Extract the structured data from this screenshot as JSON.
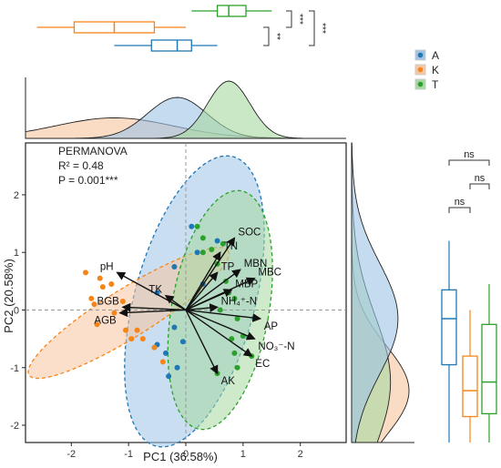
{
  "chart_data": {
    "type": "scatter",
    "title": "",
    "xlabel": "PC1 (36.58%)",
    "ylabel": "PC2 (20.58%)",
    "xlim": [
      -2.8,
      2.8
    ],
    "ylim": [
      -2.3,
      2.9
    ],
    "x_ticks": [
      -2,
      -1,
      0,
      1,
      2
    ],
    "y_ticks": [
      -2,
      -1,
      0,
      1,
      2
    ],
    "grid": false,
    "legend_position": "right",
    "annotation": {
      "line1": "PERMANOVA",
      "line2": "R² = 0.48",
      "line3": "P = 0.001***"
    },
    "series": [
      {
        "name": "A",
        "color": "#1f77b4",
        "fill": "#9ec3e6",
        "points": [
          [
            0.1,
            1.45
          ],
          [
            0.55,
            1.2
          ],
          [
            -0.2,
            0.75
          ],
          [
            0.3,
            0.45
          ],
          [
            -0.5,
            0.3
          ],
          [
            -0.2,
            -0.3
          ],
          [
            -0.05,
            -0.55
          ],
          [
            -0.5,
            -0.6
          ],
          [
            -0.35,
            -0.75
          ],
          [
            -0.15,
            -1.0
          ],
          [
            -0.3,
            -1.15
          ],
          [
            0.2,
            1.0
          ]
        ],
        "ellipse": {
          "cx": 0.15,
          "cy": 0.15,
          "rx": 1.05,
          "ry": 2.6,
          "angle_deg": 15
        }
      },
      {
        "name": "K",
        "color": "#f58518",
        "fill": "#f7c59f",
        "points": [
          [
            -1.75,
            0.65
          ],
          [
            -1.5,
            0.55
          ],
          [
            -1.45,
            0.4
          ],
          [
            -1.3,
            0.45
          ],
          [
            -1.65,
            0.2
          ],
          [
            -1.6,
            0.1
          ],
          [
            -1.25,
            -0.05
          ],
          [
            -1.1,
            0.15
          ],
          [
            -1.55,
            -0.25
          ],
          [
            -1.05,
            -0.35
          ],
          [
            -0.95,
            -0.5
          ],
          [
            -0.85,
            -0.35
          ],
          [
            -0.75,
            -0.5
          ],
          [
            -0.55,
            -0.65
          ],
          [
            -0.4,
            -0.9
          ]
        ],
        "ellipse": {
          "cx": -1.0,
          "cy": -0.05,
          "rx": 2.05,
          "ry": 0.42,
          "angle_deg": -32
        }
      },
      {
        "name": "T",
        "color": "#2ca02c",
        "fill": "#a6d9a0",
        "points": [
          [
            0.2,
            1.45
          ],
          [
            0.3,
            1.25
          ],
          [
            0.45,
            1.05
          ],
          [
            0.65,
            1.15
          ],
          [
            0.55,
            0.8
          ],
          [
            0.7,
            0.5
          ],
          [
            0.75,
            0.3
          ],
          [
            0.85,
            0.2
          ],
          [
            0.6,
            0.0
          ],
          [
            0.9,
            -0.15
          ],
          [
            1.0,
            -0.45
          ],
          [
            0.8,
            -0.5
          ],
          [
            0.85,
            -0.75
          ],
          [
            1.15,
            -0.8
          ],
          [
            0.9,
            -1.0
          ],
          [
            0.55,
            -1.1
          ],
          [
            0.3,
            1.0
          ]
        ],
        "ellipse": {
          "cx": 0.6,
          "cy": 0.0,
          "rx": 0.85,
          "ry": 2.1,
          "angle_deg": 10
        }
      }
    ],
    "vectors": [
      {
        "label": "SOC",
        "x": 0.85,
        "y": 1.25
      },
      {
        "label": "TN",
        "x": 0.6,
        "y": 1.0
      },
      {
        "label": "MBN",
        "x": 0.95,
        "y": 0.7
      },
      {
        "label": "TP",
        "x": 0.55,
        "y": 0.65
      },
      {
        "label": "MBC",
        "x": 1.2,
        "y": 0.55
      },
      {
        "label": "MBP",
        "x": 0.8,
        "y": 0.35
      },
      {
        "label": "NH₄⁺-N",
        "x": 0.55,
        "y": 0.05
      },
      {
        "label": "AP",
        "x": 1.3,
        "y": -0.15
      },
      {
        "label": "NO₃⁻-N",
        "x": 1.2,
        "y": -0.5
      },
      {
        "label": "EC",
        "x": 1.15,
        "y": -0.8
      },
      {
        "label": "AK",
        "x": 0.55,
        "y": -1.1
      },
      {
        "label": "TK",
        "x": -0.35,
        "y": 0.25
      },
      {
        "label": "pH",
        "x": -1.2,
        "y": 0.65
      },
      {
        "label": "BGB",
        "x": -1.1,
        "y": 0.05
      },
      {
        "label": "AGB",
        "x": -1.15,
        "y": -0.05
      }
    ],
    "marginal_x": {
      "type": "density",
      "A": {
        "min": -1.25,
        "q1": -0.6,
        "median": -0.15,
        "q3": 0.1,
        "max": 0.55
      },
      "K": {
        "min": -2.6,
        "q1": -1.95,
        "median": -1.25,
        "q3": -0.55,
        "max": 0.0
      },
      "T": {
        "min": 0.1,
        "q1": 0.55,
        "median": 0.75,
        "q3": 1.05,
        "max": 1.5
      },
      "significance": [
        {
          "groups": "A-T",
          "label": "**"
        },
        {
          "groups": "K-A",
          "label": "***"
        },
        {
          "groups": "K-T",
          "label": "***"
        }
      ]
    },
    "marginal_y": {
      "type": "density",
      "A": {
        "min": -2.3,
        "q1": -0.95,
        "median": -0.15,
        "q3": 0.35,
        "max": 1.2
      },
      "K": {
        "min": -2.3,
        "q1": -1.85,
        "median": -1.4,
        "q3": -0.8,
        "max": 0.0
      },
      "T": {
        "min": -2.3,
        "q1": -1.8,
        "median": -1.25,
        "q3": -0.25,
        "max": 0.45
      },
      "significance": [
        {
          "groups": "A-K",
          "label": "ns"
        },
        {
          "groups": "A-T",
          "label": "ns"
        },
        {
          "groups": "K-T",
          "label": "ns"
        }
      ]
    }
  }
}
